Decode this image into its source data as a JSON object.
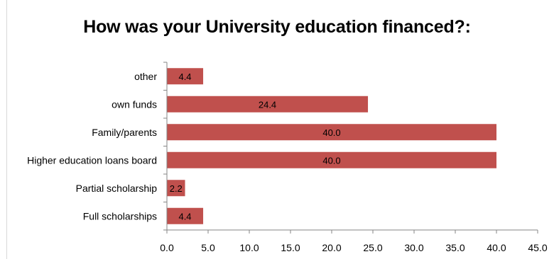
{
  "chart_data": {
    "type": "bar",
    "orientation": "horizontal",
    "title": "How was your University education financed?:",
    "categories": [
      "Full scholarships",
      "Partial scholarship",
      "Higher education loans board",
      "Family/parents",
      "own funds",
      "other"
    ],
    "values": [
      4.4,
      2.2,
      40.0,
      40.0,
      24.4,
      4.4
    ],
    "data_labels": [
      "4.4",
      "2.2",
      "40.0",
      "40.0",
      "24.4",
      "4.4"
    ],
    "xlim": [
      0,
      45
    ],
    "x_ticks": [
      "0.0",
      "5.0",
      "10.0",
      "15.0",
      "20.0",
      "25.0",
      "30.0",
      "35.0",
      "40.0",
      "45.0"
    ],
    "bar_color": "#c0504d",
    "grid": false,
    "legend": "none"
  }
}
